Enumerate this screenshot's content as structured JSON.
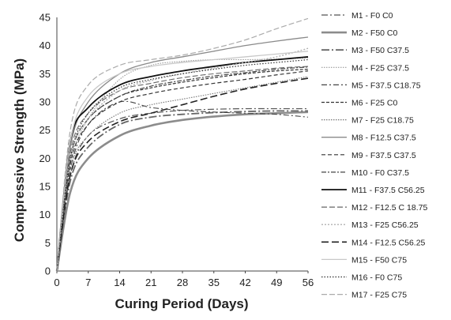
{
  "chart_data": {
    "type": "line",
    "title": "",
    "xlabel": "Curing Period (Days)",
    "ylabel": "Compressive Strength (MPa)",
    "xlim": [
      0,
      56
    ],
    "ylim": [
      0,
      45
    ],
    "xticks": [
      0,
      7,
      14,
      21,
      28,
      35,
      42,
      49,
      56
    ],
    "yticks": [
      0,
      5,
      10,
      15,
      20,
      25,
      30,
      35,
      40,
      45
    ],
    "grid": false,
    "legend_position": "right",
    "x": [
      0,
      3,
      7,
      14,
      21,
      28,
      35,
      42,
      49,
      56
    ],
    "series": [
      {
        "name": "M1 - F0 C0",
        "color": "#555555",
        "dash": "8,3,2,3",
        "width": 1.2,
        "values": [
          0,
          17,
          24,
          27,
          28,
          28.5,
          28.7,
          28.8,
          28.8,
          28.8
        ]
      },
      {
        "name": "M2 - F50 C0",
        "color": "#8c8c8c",
        "dash": "",
        "width": 2.6,
        "values": [
          0,
          14,
          20,
          24,
          25.8,
          26.8,
          27.4,
          27.8,
          28,
          28.2
        ]
      },
      {
        "name": "M3 - F50 C37.5",
        "color": "#666666",
        "dash": "10,3,2,3",
        "width": 1.8,
        "values": [
          0,
          16,
          22,
          26,
          27.3,
          27.8,
          28.1,
          28.3,
          28.4,
          28.4
        ]
      },
      {
        "name": "M4 - F25 C37.5",
        "color": "#9a9a9a",
        "dash": "1.5,1.5",
        "width": 1.1,
        "values": [
          0,
          19,
          27,
          34,
          36.5,
          37.2,
          37.5,
          37.5,
          37.6,
          37.8
        ]
      },
      {
        "name": "M5 - F37.5 C18.75",
        "color": "#444444",
        "dash": "7,3,2,3",
        "width": 1.1,
        "values": [
          0,
          18,
          26,
          30,
          29,
          28.5,
          28.2,
          28,
          27.8,
          27.3
        ]
      },
      {
        "name": "M6 - F25 C0",
        "color": "#333333",
        "dash": "4,2",
        "width": 1.2,
        "values": [
          0,
          20,
          27,
          31,
          32.5,
          33.5,
          34.3,
          35,
          35.5,
          35.8
        ]
      },
      {
        "name": "M7 - F25 C18.75",
        "color": "#777777",
        "dash": "1.5,1.5",
        "width": 1.1,
        "values": [
          0,
          18,
          24,
          28,
          29.5,
          30.5,
          31.5,
          32.5,
          33.5,
          34.5
        ]
      },
      {
        "name": "M8 - F12.5 C37.5",
        "color": "#8a8a8a",
        "dash": "",
        "width": 1.3,
        "values": [
          0,
          22,
          30,
          35,
          37,
          38,
          39,
          40,
          40.8,
          41.5
        ]
      },
      {
        "name": "M9 - F37.5 C37.5",
        "color": "#333333",
        "dash": "5,3",
        "width": 1.2,
        "values": [
          0,
          19,
          26,
          30,
          31.5,
          32.5,
          33.3,
          34,
          34.8,
          35.5
        ]
      },
      {
        "name": "M10 - F0 C37.5",
        "color": "#444444",
        "dash": "6,2,2,2",
        "width": 1.2,
        "values": [
          0,
          20,
          27,
          31,
          32.8,
          33.8,
          34.6,
          35.2,
          35.8,
          36.2
        ]
      },
      {
        "name": "M11 - F37.5 C56.25",
        "color": "#111111",
        "dash": "",
        "width": 1.8,
        "values": [
          0,
          23,
          29,
          33,
          34.5,
          35.5,
          36.3,
          37,
          37.5,
          38
        ]
      },
      {
        "name": "M12 - F12.5 C 18.75",
        "color": "#666666",
        "dash": "7,3",
        "width": 1.1,
        "values": [
          0,
          21,
          28,
          32,
          33.3,
          34.3,
          35,
          35.5,
          36,
          36.3
        ]
      },
      {
        "name": "M13 - F25 C56.25",
        "color": "#b0b0b0",
        "dash": "2,2",
        "width": 1.4,
        "values": [
          0,
          20,
          27,
          32,
          33.8,
          35,
          36,
          37,
          38,
          39.5
        ]
      },
      {
        "name": "M14 - F12.5 C56.25",
        "color": "#222222",
        "dash": "9,4",
        "width": 1.6,
        "values": [
          0,
          17,
          23,
          26.5,
          28,
          29.5,
          31,
          32.3,
          33.3,
          34.2
        ]
      },
      {
        "name": "M15 - F50 C75",
        "color": "#c8c8c8",
        "dash": "",
        "width": 1.3,
        "values": [
          0,
          23,
          31,
          35,
          36.3,
          37,
          37.5,
          38,
          38.5,
          39
        ]
      },
      {
        "name": "M16 - F0 C75",
        "color": "#333333",
        "dash": "1.5,2",
        "width": 1.2,
        "values": [
          0,
          20,
          28,
          32.5,
          34,
          35,
          35.8,
          36.5,
          37,
          37.5
        ]
      },
      {
        "name": "M17 - F25 C75",
        "color": "#aaaaaa",
        "dash": "7,3",
        "width": 1.2,
        "values": [
          0,
          25,
          33,
          36.5,
          37.5,
          38.3,
          39.5,
          41,
          43,
          44.8
        ]
      }
    ]
  }
}
